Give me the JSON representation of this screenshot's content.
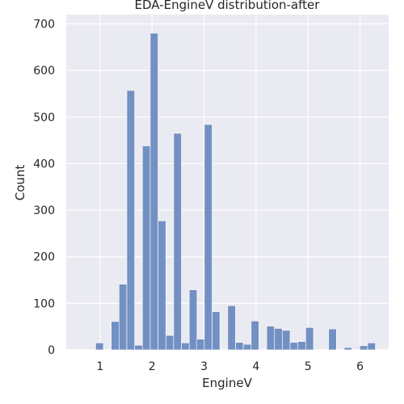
{
  "chart_data": {
    "type": "bar",
    "title": "EDA-EngineV distribution-after",
    "xlabel": "EngineV",
    "ylabel": "Count",
    "xlim": [
      0.35,
      6.55
    ],
    "ylim": [
      0,
      720
    ],
    "xticks": [
      1,
      2,
      3,
      4,
      5,
      6
    ],
    "yticks": [
      0,
      100,
      200,
      300,
      400,
      500,
      600,
      700
    ],
    "bin_width": 0.149,
    "grid": true,
    "bar_color": "#7390c2",
    "plot_bg": "#eaeaf2",
    "bins": [
      {
        "x": 0.99,
        "value": 15
      },
      {
        "x": 1.29,
        "value": 61
      },
      {
        "x": 1.44,
        "value": 141
      },
      {
        "x": 1.59,
        "value": 557
      },
      {
        "x": 1.74,
        "value": 10
      },
      {
        "x": 1.89,
        "value": 438
      },
      {
        "x": 2.04,
        "value": 680
      },
      {
        "x": 2.19,
        "value": 277
      },
      {
        "x": 2.34,
        "value": 31
      },
      {
        "x": 2.49,
        "value": 465
      },
      {
        "x": 2.64,
        "value": 15
      },
      {
        "x": 2.79,
        "value": 129
      },
      {
        "x": 2.93,
        "value": 23
      },
      {
        "x": 3.08,
        "value": 484
      },
      {
        "x": 3.23,
        "value": 82
      },
      {
        "x": 3.53,
        "value": 95
      },
      {
        "x": 3.68,
        "value": 16
      },
      {
        "x": 3.83,
        "value": 12
      },
      {
        "x": 3.98,
        "value": 62
      },
      {
        "x": 4.28,
        "value": 51
      },
      {
        "x": 4.43,
        "value": 46
      },
      {
        "x": 4.58,
        "value": 42
      },
      {
        "x": 4.73,
        "value": 16
      },
      {
        "x": 4.88,
        "value": 18
      },
      {
        "x": 5.03,
        "value": 48
      },
      {
        "x": 5.47,
        "value": 45
      },
      {
        "x": 5.77,
        "value": 5
      },
      {
        "x": 6.07,
        "value": 9
      },
      {
        "x": 6.22,
        "value": 15
      }
    ]
  }
}
